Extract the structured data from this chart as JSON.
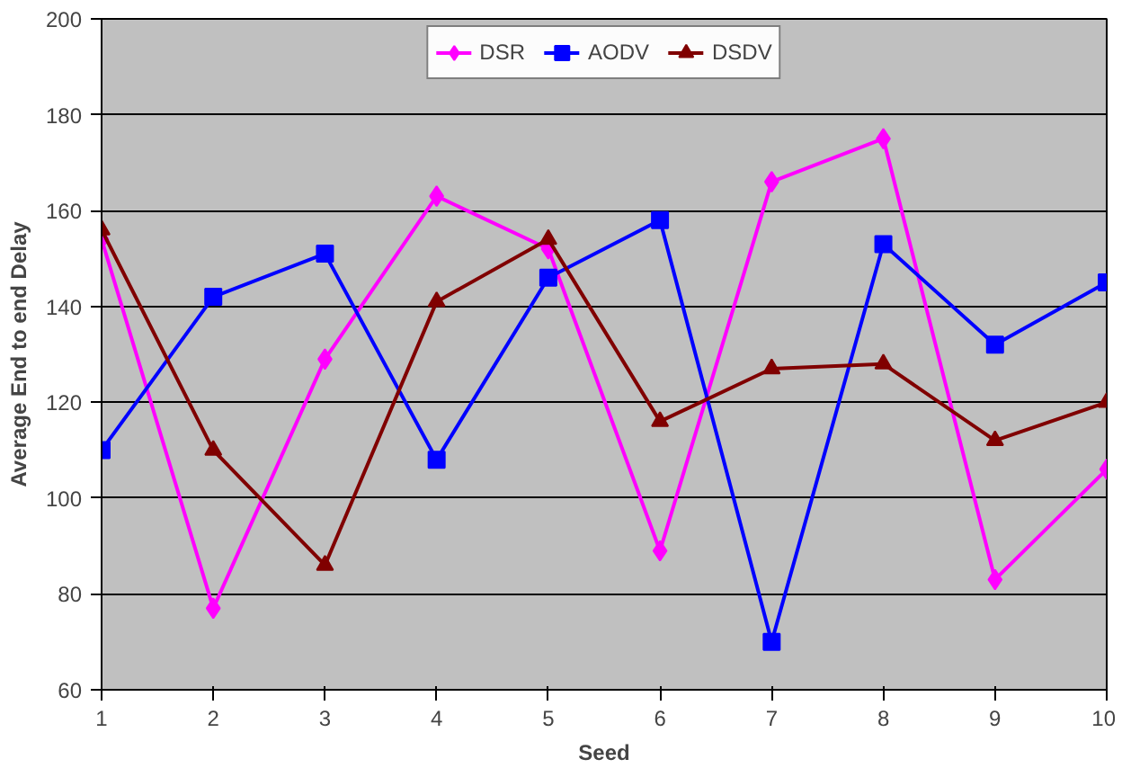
{
  "chart_data": {
    "type": "line",
    "xlabel": "Seed",
    "ylabel": "Average End to end Delay",
    "categories": [
      "1",
      "2",
      "3",
      "4",
      "5",
      "6",
      "7",
      "8",
      "9",
      "10"
    ],
    "series": [
      {
        "name": "DSR",
        "color": "#ff00ff",
        "marker": "diamond",
        "values": [
          154,
          77,
          129,
          163,
          152,
          89,
          166,
          175,
          83,
          106
        ]
      },
      {
        "name": "AODV",
        "color": "#0000ff",
        "marker": "square",
        "values": [
          110,
          142,
          151,
          108,
          146,
          158,
          70,
          153,
          132,
          145
        ]
      },
      {
        "name": "DSDV",
        "color": "#800000",
        "marker": "triangle",
        "values": [
          156,
          110,
          86,
          141,
          154,
          116,
          127,
          128,
          112,
          120
        ]
      }
    ],
    "ylim": [
      60,
      200
    ],
    "yticks": [
      60,
      80,
      100,
      120,
      140,
      160,
      180,
      200
    ],
    "grid": "y",
    "legend": "top"
  }
}
